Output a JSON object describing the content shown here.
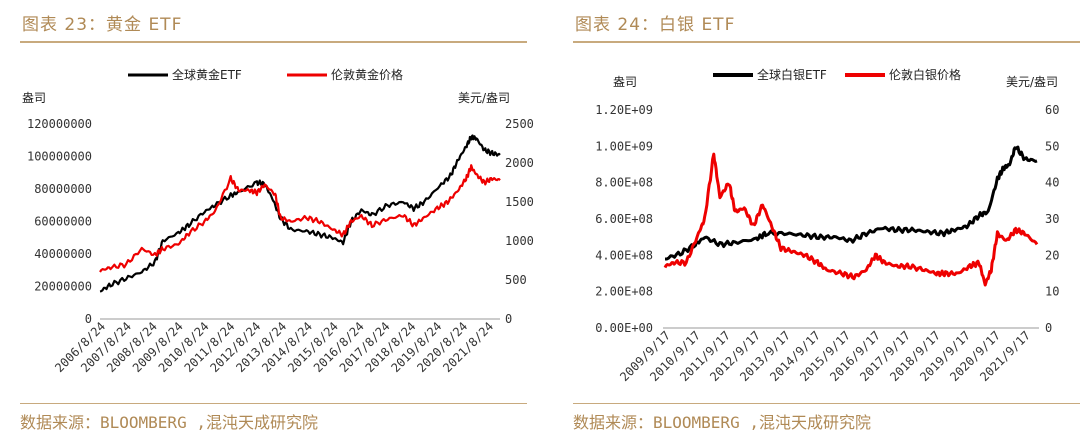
{
  "chart_data": [
    {
      "type": "line",
      "title": "图表 23：黄金 ETF",
      "source": "数据来源：BLOOMBERG ,混沌天成研究院",
      "ylabel_left": "盎司",
      "ylabel_right": "美元/盎司",
      "ylim_left": [
        0,
        120000000
      ],
      "ylim_right": [
        0,
        2500
      ],
      "yticks_left": [
        "0",
        "20000000",
        "40000000",
        "60000000",
        "80000000",
        "100000000",
        "120000000"
      ],
      "yticks_right": [
        "0",
        "500",
        "1000",
        "1500",
        "2000",
        "2500"
      ],
      "x_ticks": [
        "2006/8/24",
        "2007/8/24",
        "2008/8/24",
        "2009/8/24",
        "2010/8/24",
        "2011/8/24",
        "2012/8/24",
        "2013/8/24",
        "2014/8/24",
        "2015/8/24",
        "2016/8/24",
        "2017/8/24",
        "2018/8/24",
        "2019/8/24",
        "2020/8/24",
        "2021/8/24"
      ],
      "x_range": [
        2006.6,
        2021.9
      ],
      "legend": "top",
      "grid": false,
      "series": [
        {
          "name": "全球黄金ETF",
          "axis": "left",
          "color": "#000000",
          "x": [
            2006.6,
            2007.0,
            2007.6,
            2008.2,
            2008.7,
            2009.0,
            2009.6,
            2010.0,
            2010.6,
            2011.0,
            2011.6,
            2011.9,
            2012.6,
            2012.9,
            2013.2,
            2013.5,
            2013.9,
            2014.5,
            2015.0,
            2015.5,
            2015.9,
            2016.2,
            2016.6,
            2017.0,
            2017.6,
            2018.2,
            2018.6,
            2019.0,
            2019.6,
            2020.0,
            2020.3,
            2020.6,
            2020.8,
            2021.0,
            2021.3,
            2021.6,
            2021.9
          ],
          "y": [
            17000000,
            21000000,
            25000000,
            29000000,
            35000000,
            48000000,
            53000000,
            58000000,
            66000000,
            70000000,
            76000000,
            78000000,
            84000000,
            83000000,
            74000000,
            62000000,
            55000000,
            54000000,
            52000000,
            50000000,
            47000000,
            60000000,
            67000000,
            64000000,
            70000000,
            72000000,
            68000000,
            72000000,
            82000000,
            88000000,
            98000000,
            106000000,
            112000000,
            111000000,
            104000000,
            102000000,
            101000000
          ]
        },
        {
          "name": "伦敦黄金价格",
          "axis": "right",
          "color": "#ee0000",
          "x": [
            2006.6,
            2007.0,
            2007.6,
            2008.2,
            2008.7,
            2009.0,
            2009.6,
            2010.0,
            2010.6,
            2011.0,
            2011.6,
            2011.9,
            2012.3,
            2012.6,
            2012.9,
            2013.3,
            2013.5,
            2013.9,
            2014.5,
            2015.0,
            2015.5,
            2015.9,
            2016.2,
            2016.6,
            2017.0,
            2017.6,
            2018.2,
            2018.6,
            2019.0,
            2019.5,
            2019.9,
            2020.3,
            2020.6,
            2020.8,
            2021.0,
            2021.3,
            2021.6,
            2021.9
          ],
          "y": [
            620,
            660,
            700,
            900,
            820,
            900,
            960,
            1100,
            1250,
            1380,
            1800,
            1650,
            1650,
            1620,
            1720,
            1600,
            1300,
            1250,
            1300,
            1250,
            1150,
            1080,
            1250,
            1320,
            1200,
            1280,
            1330,
            1200,
            1300,
            1420,
            1500,
            1650,
            1800,
            1950,
            1850,
            1750,
            1800,
            1780
          ]
        }
      ]
    },
    {
      "type": "line",
      "title": "图表 24：白银 ETF",
      "source": "数据来源：BLOOMBERG ,混沌天成研究院",
      "ylabel_left": "盎司",
      "ylabel_right": "美元/盎司",
      "ylim_left": [
        0,
        1200000000
      ],
      "ylim_right": [
        0,
        60
      ],
      "yticks_left": [
        "0.00E+00",
        "2.00E+08",
        "4.00E+08",
        "6.00E+08",
        "8.00E+08",
        "1.00E+09",
        "1.20E+09"
      ],
      "yticks_right": [
        "0",
        "10",
        "20",
        "30",
        "40",
        "50",
        "60"
      ],
      "x_ticks": [
        "2009/9/17",
        "2010/9/17",
        "2011/9/17",
        "2012/9/17",
        "2013/9/17",
        "2014/9/17",
        "2015/9/17",
        "2016/9/17",
        "2017/9/17",
        "2018/9/17",
        "2019/9/17",
        "2020/9/17",
        "2021/9/17"
      ],
      "x_range": [
        2009.7,
        2021.9
      ],
      "legend": "top",
      "grid": false,
      "series": [
        {
          "name": "全球白银ETF",
          "axis": "left",
          "color": "#000000",
          "x": [
            2009.7,
            2010.2,
            2010.7,
            2011.0,
            2011.5,
            2012.0,
            2012.7,
            2013.0,
            2013.7,
            2014.3,
            2014.8,
            2015.3,
            2015.8,
            2016.3,
            2016.8,
            2017.3,
            2017.8,
            2018.3,
            2018.8,
            2019.2,
            2019.6,
            2020.0,
            2020.3,
            2020.6,
            2020.8,
            2021.0,
            2021.2,
            2021.5,
            2021.9
          ],
          "y": [
            380000000,
            410000000,
            460000000,
            500000000,
            460000000,
            470000000,
            490000000,
            520000000,
            520000000,
            510000000,
            500000000,
            500000000,
            480000000,
            520000000,
            550000000,
            540000000,
            540000000,
            530000000,
            520000000,
            540000000,
            560000000,
            620000000,
            640000000,
            820000000,
            880000000,
            900000000,
            1000000000,
            930000000,
            920000000
          ]
        },
        {
          "name": "伦敦白银价格",
          "axis": "right",
          "color": "#ee0000",
          "x": [
            2009.7,
            2010.0,
            2010.4,
            2010.8,
            2011.0,
            2011.3,
            2011.5,
            2011.8,
            2012.0,
            2012.3,
            2012.6,
            2012.9,
            2013.2,
            2013.5,
            2013.9,
            2014.3,
            2014.7,
            2015.0,
            2015.5,
            2015.9,
            2016.3,
            2016.6,
            2016.9,
            2017.3,
            2017.7,
            2018.2,
            2018.6,
            2018.9,
            2019.3,
            2019.7,
            2020.0,
            2020.2,
            2020.4,
            2020.6,
            2020.9,
            2021.2,
            2021.5,
            2021.9
          ],
          "y": [
            17,
            18,
            18,
            26,
            30,
            48,
            36,
            40,
            32,
            33,
            28,
            34,
            28,
            22,
            21,
            20,
            18,
            16,
            15,
            14,
            16,
            20,
            18,
            17,
            17,
            16,
            15,
            15,
            15,
            17,
            18,
            12,
            16,
            26,
            24,
            27,
            26,
            23
          ]
        }
      ]
    }
  ]
}
